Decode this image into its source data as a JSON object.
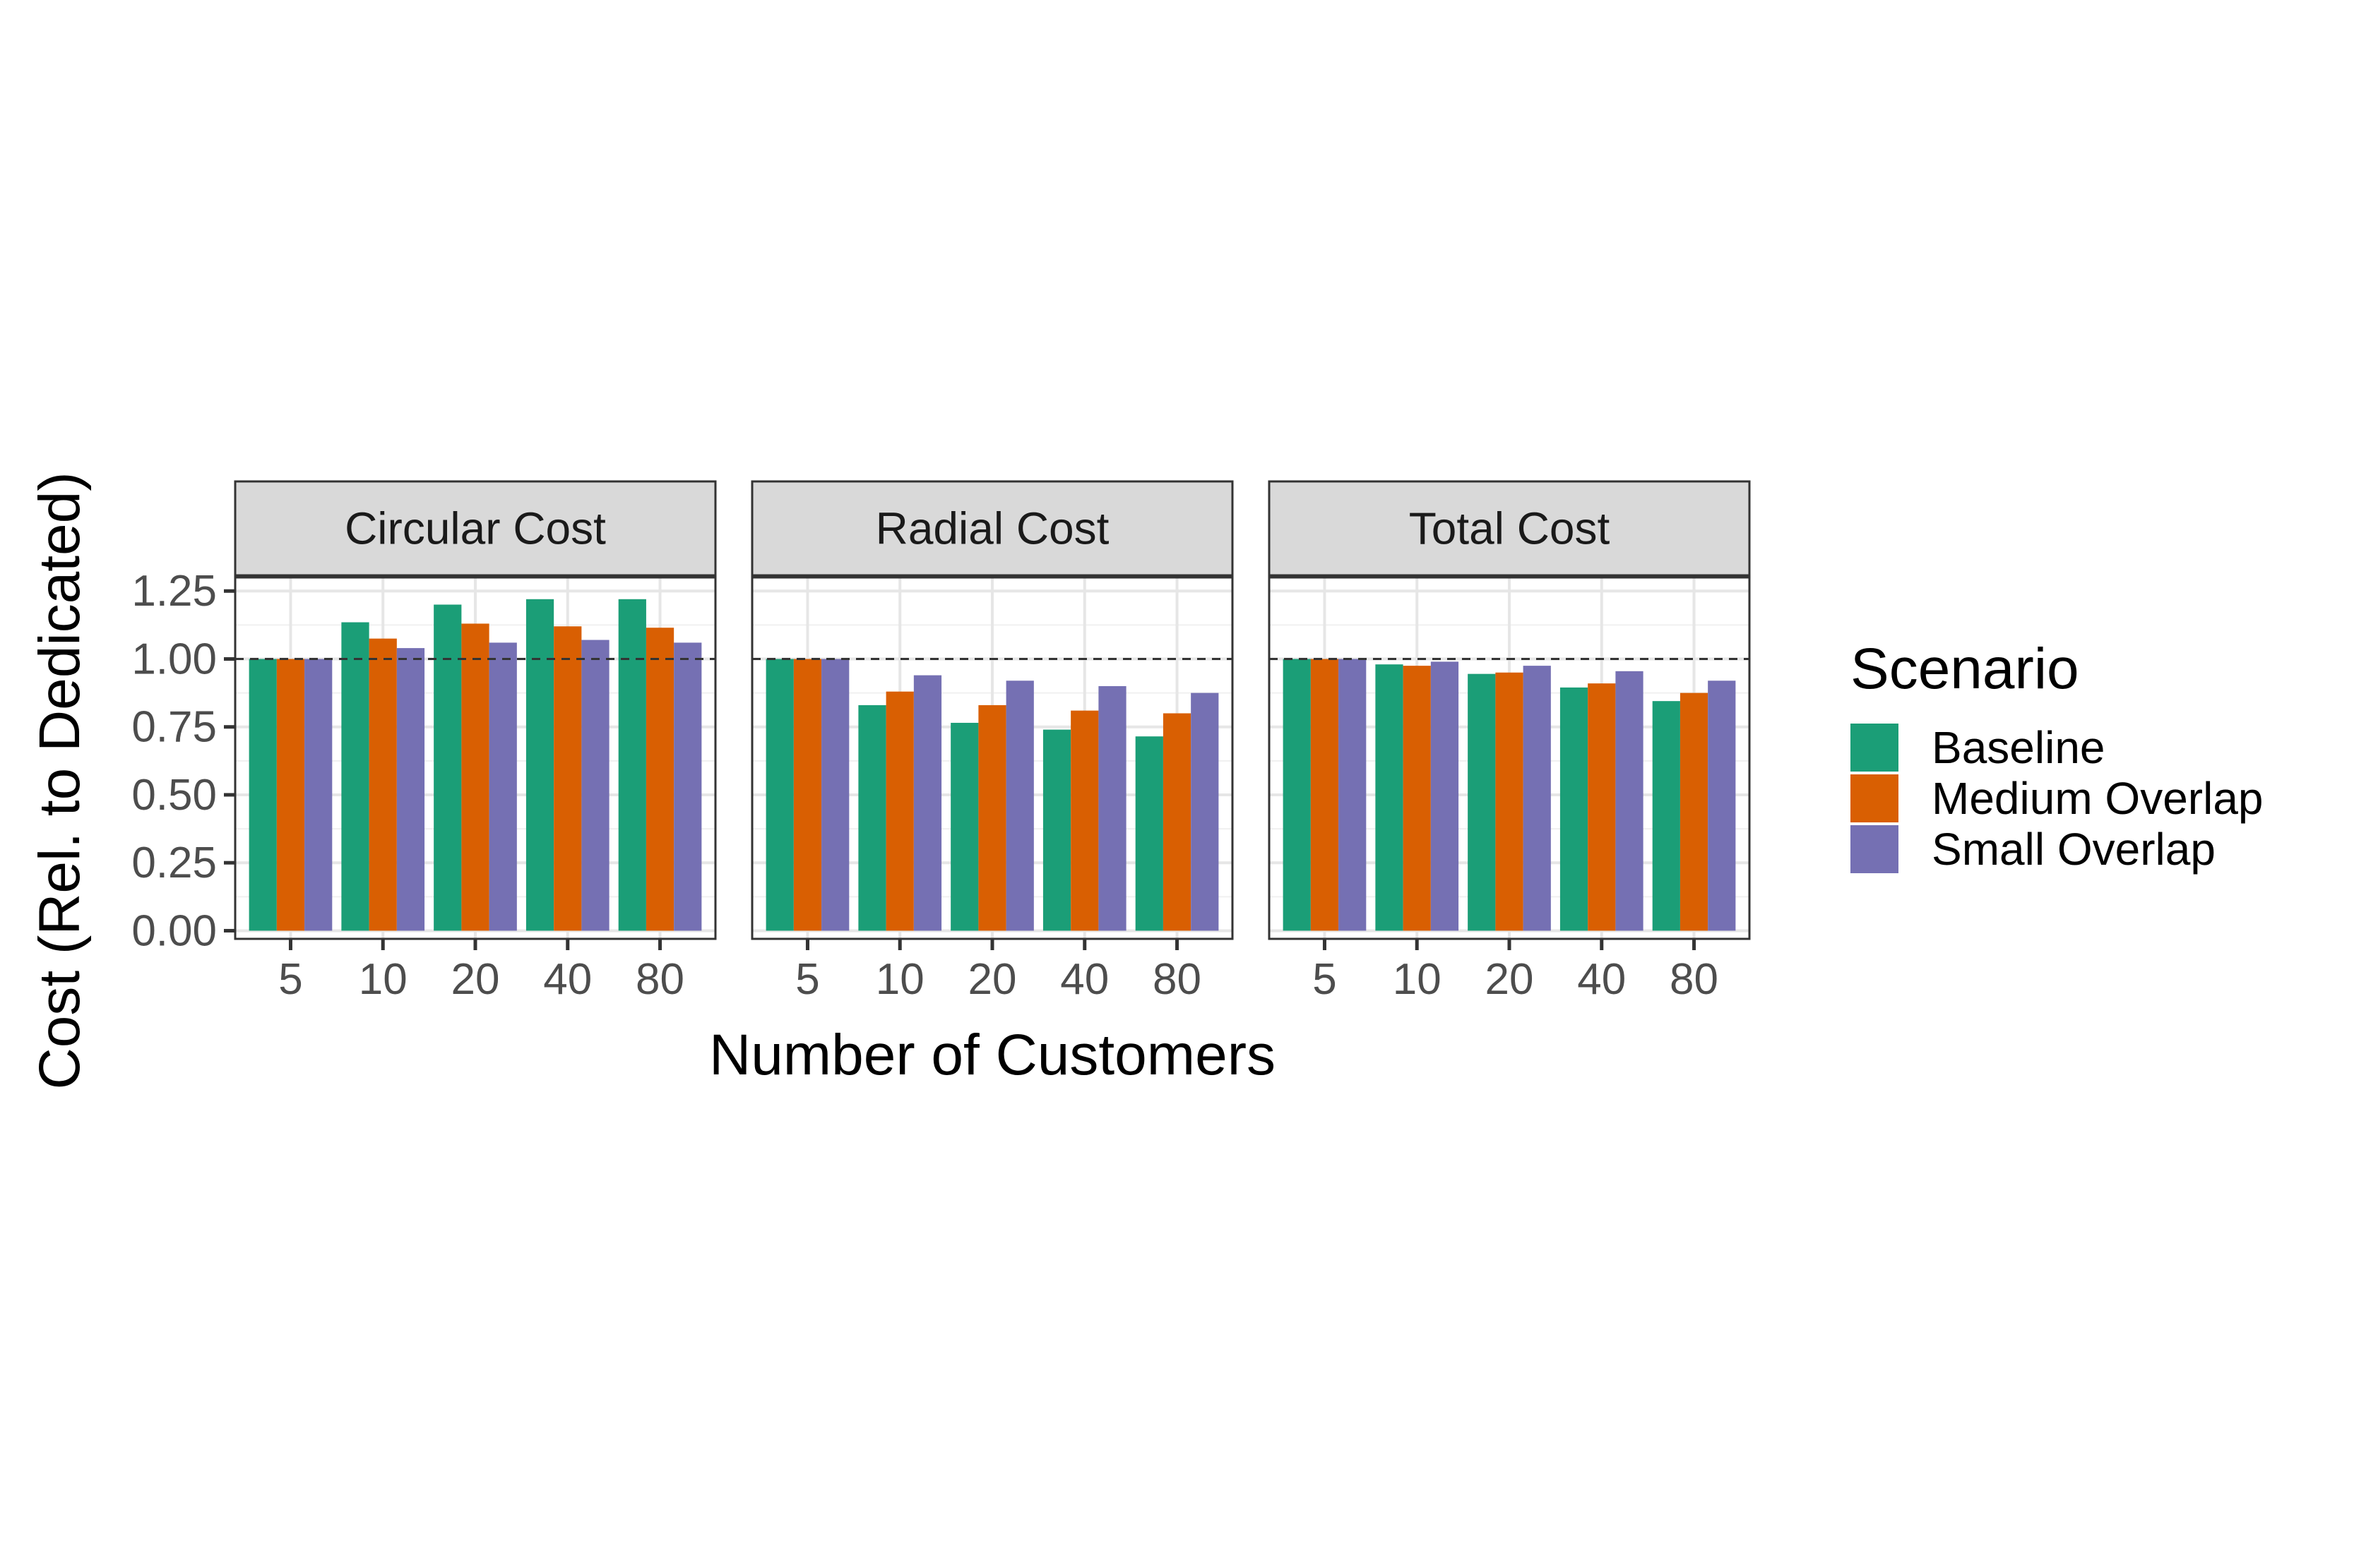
{
  "chart_data": {
    "type": "bar",
    "xlabel": "Number of Customers",
    "ylabel": "Cost (Rel. to Dedicated)",
    "categories": [
      "5",
      "10",
      "20",
      "40",
      "80"
    ],
    "ylim": [
      -0.03,
      1.3
    ],
    "yticks": [
      0.0,
      0.25,
      0.5,
      0.75,
      1.0,
      1.25
    ],
    "ytick_labels": [
      "0.00",
      "0.25",
      "0.50",
      "0.75",
      "1.00",
      "1.25"
    ],
    "reference_line": {
      "value": 1.0,
      "style": "dashed"
    },
    "grid": true,
    "legend": {
      "title": "Scenario",
      "placement": "right",
      "entries": [
        {
          "name": "Baseline",
          "color": "#1b9e77"
        },
        {
          "name": "Medium Overlap",
          "color": "#d95f02"
        },
        {
          "name": "Small Overlap",
          "color": "#7570b3"
        }
      ]
    },
    "panels": [
      {
        "title": "Circular Cost",
        "series": [
          {
            "name": "Baseline",
            "values": [
              1.0,
              1.135,
              1.2,
              1.22,
              1.22
            ]
          },
          {
            "name": "Medium Overlap",
            "values": [
              1.0,
              1.075,
              1.13,
              1.12,
              1.115
            ]
          },
          {
            "name": "Small Overlap",
            "values": [
              1.0,
              1.04,
              1.06,
              1.07,
              1.06
            ]
          }
        ]
      },
      {
        "title": "Radial Cost",
        "series": [
          {
            "name": "Baseline",
            "values": [
              1.0,
              0.83,
              0.765,
              0.74,
              0.715
            ]
          },
          {
            "name": "Medium Overlap",
            "values": [
              1.0,
              0.88,
              0.83,
              0.81,
              0.8
            ]
          },
          {
            "name": "Small Overlap",
            "values": [
              1.0,
              0.94,
              0.92,
              0.9,
              0.875
            ]
          }
        ]
      },
      {
        "title": "Total Cost",
        "series": [
          {
            "name": "Baseline",
            "values": [
              1.0,
              0.98,
              0.945,
              0.895,
              0.845
            ]
          },
          {
            "name": "Medium Overlap",
            "values": [
              1.0,
              0.975,
              0.95,
              0.91,
              0.875
            ]
          },
          {
            "name": "Small Overlap",
            "values": [
              1.0,
              0.99,
              0.975,
              0.955,
              0.92
            ]
          }
        ]
      }
    ]
  }
}
